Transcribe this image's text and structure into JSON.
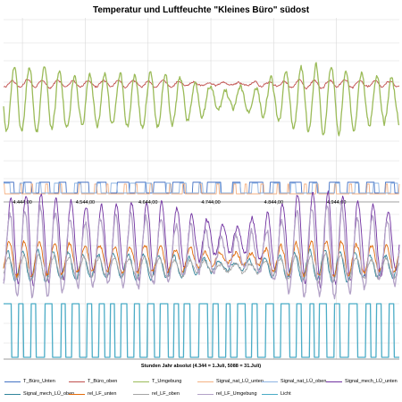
{
  "chart_data": {
    "type": "line",
    "title": "Temperatur und Luftfeuchte \"Kleines Büro\" südost",
    "xlabel": "Stunden Jahr absolut (4.344 = 1.Juli, 5088 = 31.Juli)",
    "xlim": [
      4414,
      5044
    ],
    "x_tick_labels": [
      {
        "x": 4444,
        "label": "4.444,00"
      },
      {
        "x": 4544,
        "label": "4.544,00"
      },
      {
        "x": 4644,
        "label": "4.644,00"
      },
      {
        "x": 4744,
        "label": "4.744,00"
      },
      {
        "x": 4844,
        "label": "4.844,00"
      },
      {
        "x": 4944,
        "label": "4.944,00"
      }
    ],
    "grid": true,
    "legend_position": "bottom",
    "series": [
      {
        "name": "T_Büro_Unten",
        "color": "#4472c4",
        "kind": "temp_low",
        "values": []
      },
      {
        "name": "T_Büro_oben",
        "color": "#c0504d",
        "kind": "temp_office",
        "values": []
      },
      {
        "name": "T_Umgebung",
        "color": "#9bbb59",
        "kind": "temp_outdoor",
        "values": []
      },
      {
        "name": "Signal_nat_LÜ_unten",
        "color": "#f4b183",
        "kind": "signal_nat",
        "values": []
      },
      {
        "name": "Signal_nat_LÜ_oben",
        "color": "#8eb4e3",
        "kind": "signal_nat2",
        "values": []
      },
      {
        "name": "Signal_mech_LÜ_unten",
        "color": "#7030a0",
        "kind": "signal_mech",
        "values": []
      },
      {
        "name": "Signal_mech_LÜ_oben",
        "color": "#31859c",
        "kind": "signal_light",
        "values": []
      },
      {
        "name": "rel_LF_unten",
        "color": "#e26b0a",
        "kind": "rh_low",
        "values": []
      },
      {
        "name": "rel_LF_oben",
        "color": "#a5a5a5",
        "kind": "rh_high",
        "values": []
      },
      {
        "name": "rel_LF_Umgebung",
        "color": "#b3a2c7",
        "kind": "rh_outdoor",
        "values": []
      },
      {
        "name": "Licht",
        "color": "#4bacc6",
        "kind": "light",
        "values": []
      }
    ]
  }
}
